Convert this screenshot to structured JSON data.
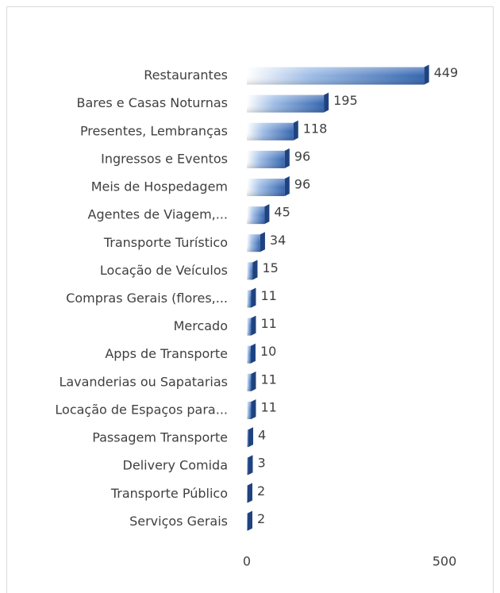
{
  "chart_data": {
    "type": "bar",
    "orientation": "horizontal",
    "categories": [
      "Restaurantes",
      "Bares e Casas Noturnas",
      "Presentes, Lembranças",
      "Ingressos e Eventos",
      "Meis de Hospedagem",
      "Agentes de Viagem,...",
      "Transporte Turístico",
      "Locação de Veículos",
      "Compras Gerais (flores,...",
      "Mercado",
      "Apps de Transporte",
      "Lavanderias ou Sapatarias",
      "Locação de Espaços para...",
      "Passagem Transporte",
      "Delivery Comida",
      "Transporte Público",
      "Serviços Gerais"
    ],
    "values": [
      449,
      195,
      118,
      96,
      96,
      45,
      34,
      15,
      11,
      11,
      10,
      11,
      11,
      4,
      3,
      2,
      2
    ],
    "color": "#3566b0",
    "xlim": [
      0,
      500
    ],
    "xticks": [
      0,
      500
    ],
    "grid": false
  }
}
